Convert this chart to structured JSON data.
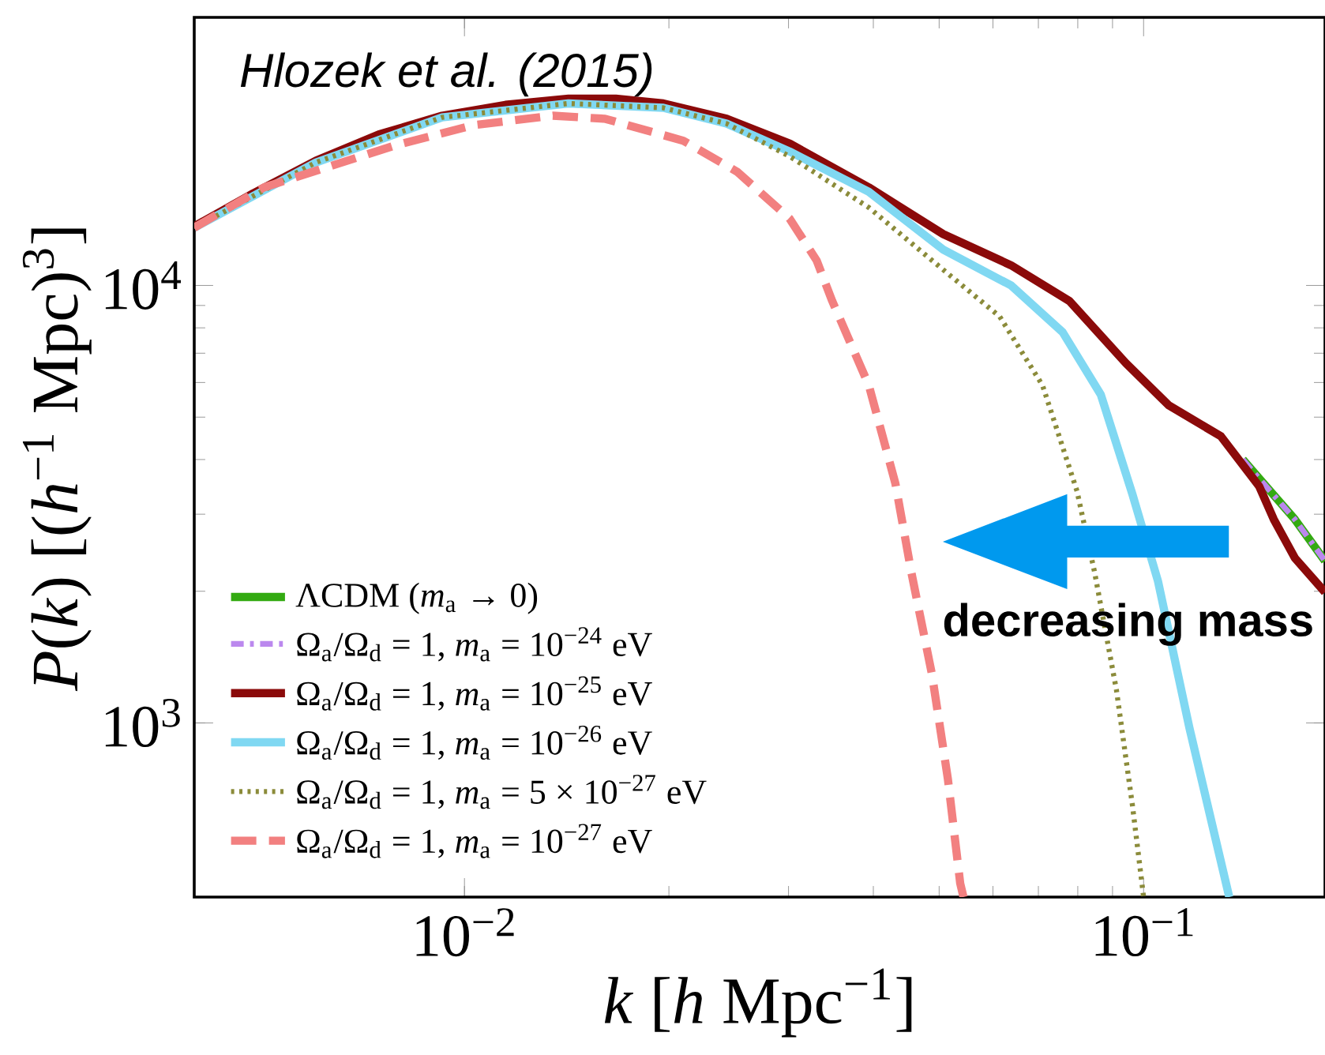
{
  "chart_data": {
    "type": "line",
    "xlabel": "*k* [*h* Mpc$^{−1}$]",
    "ylabel": "*P*(*k*) [(*h*$^{−1}$ Mpc)$^{3}$]",
    "log": "xy",
    "xlim": [
      0.004,
      0.185
    ],
    "ylim": [
      400,
      41000
    ],
    "xticks": [
      {
        "value": 0.01,
        "label": "10$^{−2}$"
      },
      {
        "value": 0.1,
        "label": "10$^{−1}$"
      }
    ],
    "yticks": [
      {
        "value": 1000,
        "label": "10$^{3}$"
      },
      {
        "value": 10000,
        "label": "10$^{4}$"
      }
    ],
    "legend": "bottom left",
    "grid": false,
    "annotations": [
      "Hlozek et al. (2015)",
      "decreasing mass"
    ],
    "series": [
      {
        "name": "ΛCDM (*m*$_{a}$ → 0)",
        "color": "#33aa11",
        "line_style": "solid",
        "x": [
          0.14,
          0.148,
          0.167,
          0.185
        ],
        "values": [
          4000,
          3620,
          2920,
          2345
        ]
      },
      {
        "name": "Ω$_{a}$/Ω$_{d}$ = 1, *m*$_{a}$ = 10$^{−24}$ eV",
        "color": "#bb88ee",
        "line_style": "dashdot",
        "x": [
          0.14,
          0.148,
          0.167,
          0.185
        ],
        "values": [
          4000,
          3620,
          2920,
          2345
        ]
      },
      {
        "name": "Ω$_{a}$/Ω$_{d}$ = 1, *m*$_{a}$ = 10$^{−25}$ eV",
        "color": "#8b0a0a",
        "line_style": "solid",
        "x": [
          0.004,
          0.00488,
          0.00604,
          0.00748,
          0.00927,
          0.01149,
          0.01423,
          0.01671,
          0.01963,
          0.02432,
          0.03013,
          0.03939,
          0.0507,
          0.0638,
          0.0778,
          0.0942,
          0.1089,
          0.13,
          0.148,
          0.1555,
          0.167,
          0.185
        ],
        "values": [
          13650,
          16220,
          19270,
          22130,
          24430,
          25870,
          26720,
          26720,
          26060,
          24040,
          21090,
          16760,
          13100,
          11120,
          9210,
          6640,
          5320,
          4520,
          3475,
          2920,
          2383,
          1990
        ]
      },
      {
        "name": "Ω$_{a}$/Ω$_{d}$ = 1, *m*$_{a}$ = 10$^{−26}$ eV",
        "color": "#80d8f2",
        "line_style": "solid",
        "x": [
          0.004,
          0.00604,
          0.00927,
          0.01423,
          0.01963,
          0.02432,
          0.03013,
          0.03939,
          0.0507,
          0.0638,
          0.076,
          0.0865,
          0.0963,
          0.105,
          0.1168,
          0.1337
        ],
        "values": [
          13550,
          19100,
          24220,
          26060,
          25470,
          23440,
          20230,
          16370,
          12070,
          10000,
          7820,
          5630,
          3330,
          2110,
          975,
          400
        ]
      },
      {
        "name": "Ω$_{a}$/Ω$_{d}$ = 1, *m*$_{a}$ = 5 × 10$^{−27}$ eV",
        "color": "#8b8b3a",
        "line_style": "dotted",
        "x": [
          0.004,
          0.00604,
          0.00927,
          0.01423,
          0.01963,
          0.02432,
          0.03013,
          0.03939,
          0.0507,
          0.0614,
          0.071,
          0.0798,
          0.0847,
          0.0912,
          0.0963,
          0.1
        ],
        "values": [
          13550,
          19100,
          24220,
          26060,
          25470,
          23440,
          19720,
          15070,
          10860,
          8490,
          5910,
          3390,
          2210,
          1190,
          647,
          400
        ]
      },
      {
        "name": "Ω$_{a}$/Ω$_{d}$ = 1, *m*$_{a}$ = 10$^{−27}$ eV",
        "color": "#f28080",
        "line_style": "dashed",
        "x": [
          0.004,
          0.00507,
          0.0079,
          0.01033,
          0.01349,
          0.01611,
          0.021,
          0.0252,
          0.0301,
          0.033,
          0.0348,
          0.0394,
          0.0431,
          0.0455,
          0.0488,
          0.0515,
          0.0537,
          0.0543
        ],
        "values": [
          13550,
          16760,
          20890,
          23260,
          24430,
          24040,
          21420,
          18200,
          14230,
          11410,
          9210,
          5910,
          3530,
          2210,
          1290,
          745,
          430,
          400
        ]
      }
    ]
  }
}
